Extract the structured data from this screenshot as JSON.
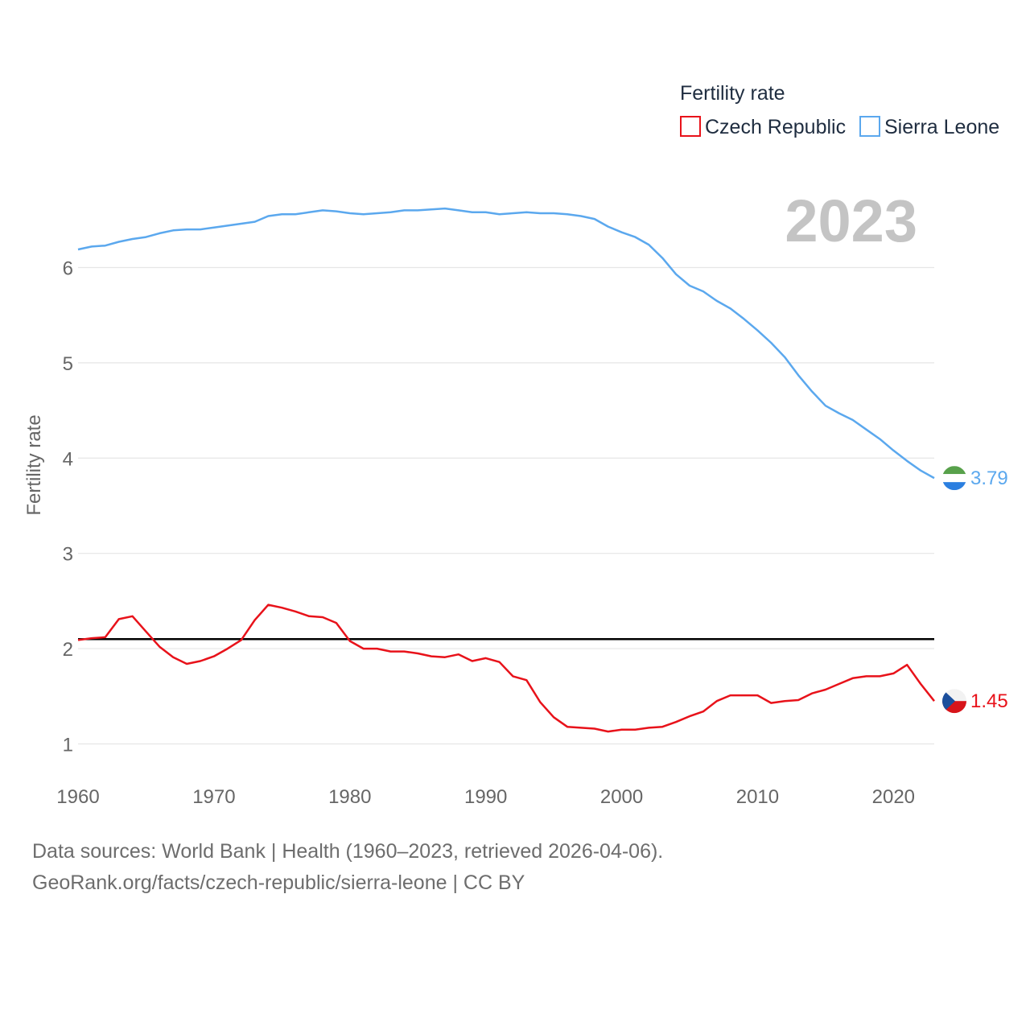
{
  "colors": {
    "czech": "#e8121a",
    "sierra": "#5ba8ee",
    "reference_line": "#000000",
    "grid": "#e6e6e6",
    "tick_text": "#666666",
    "legend_text": "#1f2d40",
    "year_text": "#c4c4c4",
    "flag_sl_green": "#58a14b",
    "flag_sl_white": "#ffffff",
    "flag_sl_blue": "#2b7fe0",
    "flag_cz_blue": "#1c4f9c",
    "flag_cz_white": "#f2f2f2",
    "flag_cz_red": "#d7141a"
  },
  "footer": {
    "line1": "Data sources: World Bank | Health (1960–2023, retrieved 2026-04-06).",
    "line2": "GeoRank.org/facts/czech-republic/sierra-leone | CC BY"
  },
  "chart_data": {
    "type": "line",
    "legend_title": "Fertility rate",
    "ylabel": "Fertility rate",
    "year_label": "2023",
    "x": [
      1960,
      1961,
      1962,
      1963,
      1964,
      1965,
      1966,
      1967,
      1968,
      1969,
      1970,
      1971,
      1972,
      1973,
      1974,
      1975,
      1976,
      1977,
      1978,
      1979,
      1980,
      1981,
      1982,
      1983,
      1984,
      1985,
      1986,
      1987,
      1988,
      1989,
      1990,
      1991,
      1992,
      1993,
      1994,
      1995,
      1996,
      1997,
      1998,
      1999,
      2000,
      2001,
      2002,
      2003,
      2004,
      2005,
      2006,
      2007,
      2008,
      2009,
      2010,
      2011,
      2012,
      2013,
      2014,
      2015,
      2016,
      2017,
      2018,
      2019,
      2020,
      2021,
      2022,
      2023
    ],
    "xlim": [
      1960,
      2023
    ],
    "ylim": [
      0.7,
      6.95
    ],
    "x_ticks": [
      "1960",
      "1970",
      "1980",
      "1990",
      "2000",
      "2010",
      "2020"
    ],
    "y_ticks": [
      "1",
      "2",
      "3",
      "4",
      "5",
      "6"
    ],
    "reference_line": 2.1,
    "series": [
      {
        "name": "Czech Republic",
        "key": "czech",
        "end_label": "1.45",
        "values": [
          2.09,
          2.11,
          2.12,
          2.31,
          2.34,
          2.18,
          2.02,
          1.91,
          1.84,
          1.87,
          1.92,
          2.0,
          2.09,
          2.3,
          2.46,
          2.43,
          2.39,
          2.34,
          2.33,
          2.27,
          2.08,
          2.0,
          2.0,
          1.97,
          1.97,
          1.95,
          1.92,
          1.91,
          1.94,
          1.87,
          1.9,
          1.86,
          1.71,
          1.67,
          1.44,
          1.28,
          1.18,
          1.17,
          1.16,
          1.13,
          1.15,
          1.15,
          1.17,
          1.18,
          1.23,
          1.29,
          1.34,
          1.45,
          1.51,
          1.51,
          1.51,
          1.43,
          1.45,
          1.46,
          1.53,
          1.57,
          1.63,
          1.69,
          1.71,
          1.71,
          1.74,
          1.83,
          1.63,
          1.45
        ]
      },
      {
        "name": "Sierra Leone",
        "key": "sierra",
        "end_label": "3.79",
        "values": [
          6.19,
          6.22,
          6.23,
          6.27,
          6.3,
          6.32,
          6.36,
          6.39,
          6.4,
          6.4,
          6.42,
          6.44,
          6.46,
          6.48,
          6.54,
          6.56,
          6.56,
          6.58,
          6.6,
          6.59,
          6.57,
          6.56,
          6.57,
          6.58,
          6.6,
          6.6,
          6.61,
          6.62,
          6.6,
          6.58,
          6.58,
          6.56,
          6.57,
          6.58,
          6.57,
          6.57,
          6.56,
          6.54,
          6.51,
          6.43,
          6.37,
          6.32,
          6.24,
          6.1,
          5.93,
          5.81,
          5.75,
          5.65,
          5.57,
          5.46,
          5.34,
          5.21,
          5.06,
          4.87,
          4.7,
          4.55,
          4.47,
          4.4,
          4.3,
          4.2,
          4.08,
          3.97,
          3.87,
          3.79
        ]
      }
    ]
  }
}
